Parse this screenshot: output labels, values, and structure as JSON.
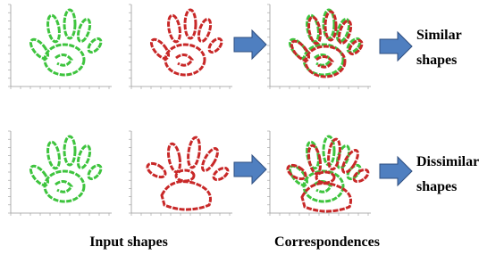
{
  "rows": [
    {
      "label_lines": [
        "Similar",
        "shapes"
      ]
    },
    {
      "label_lines": [
        "Dissimilar",
        "shapes"
      ]
    }
  ],
  "captions": [
    "Input shapes",
    "Correspondences"
  ]
}
